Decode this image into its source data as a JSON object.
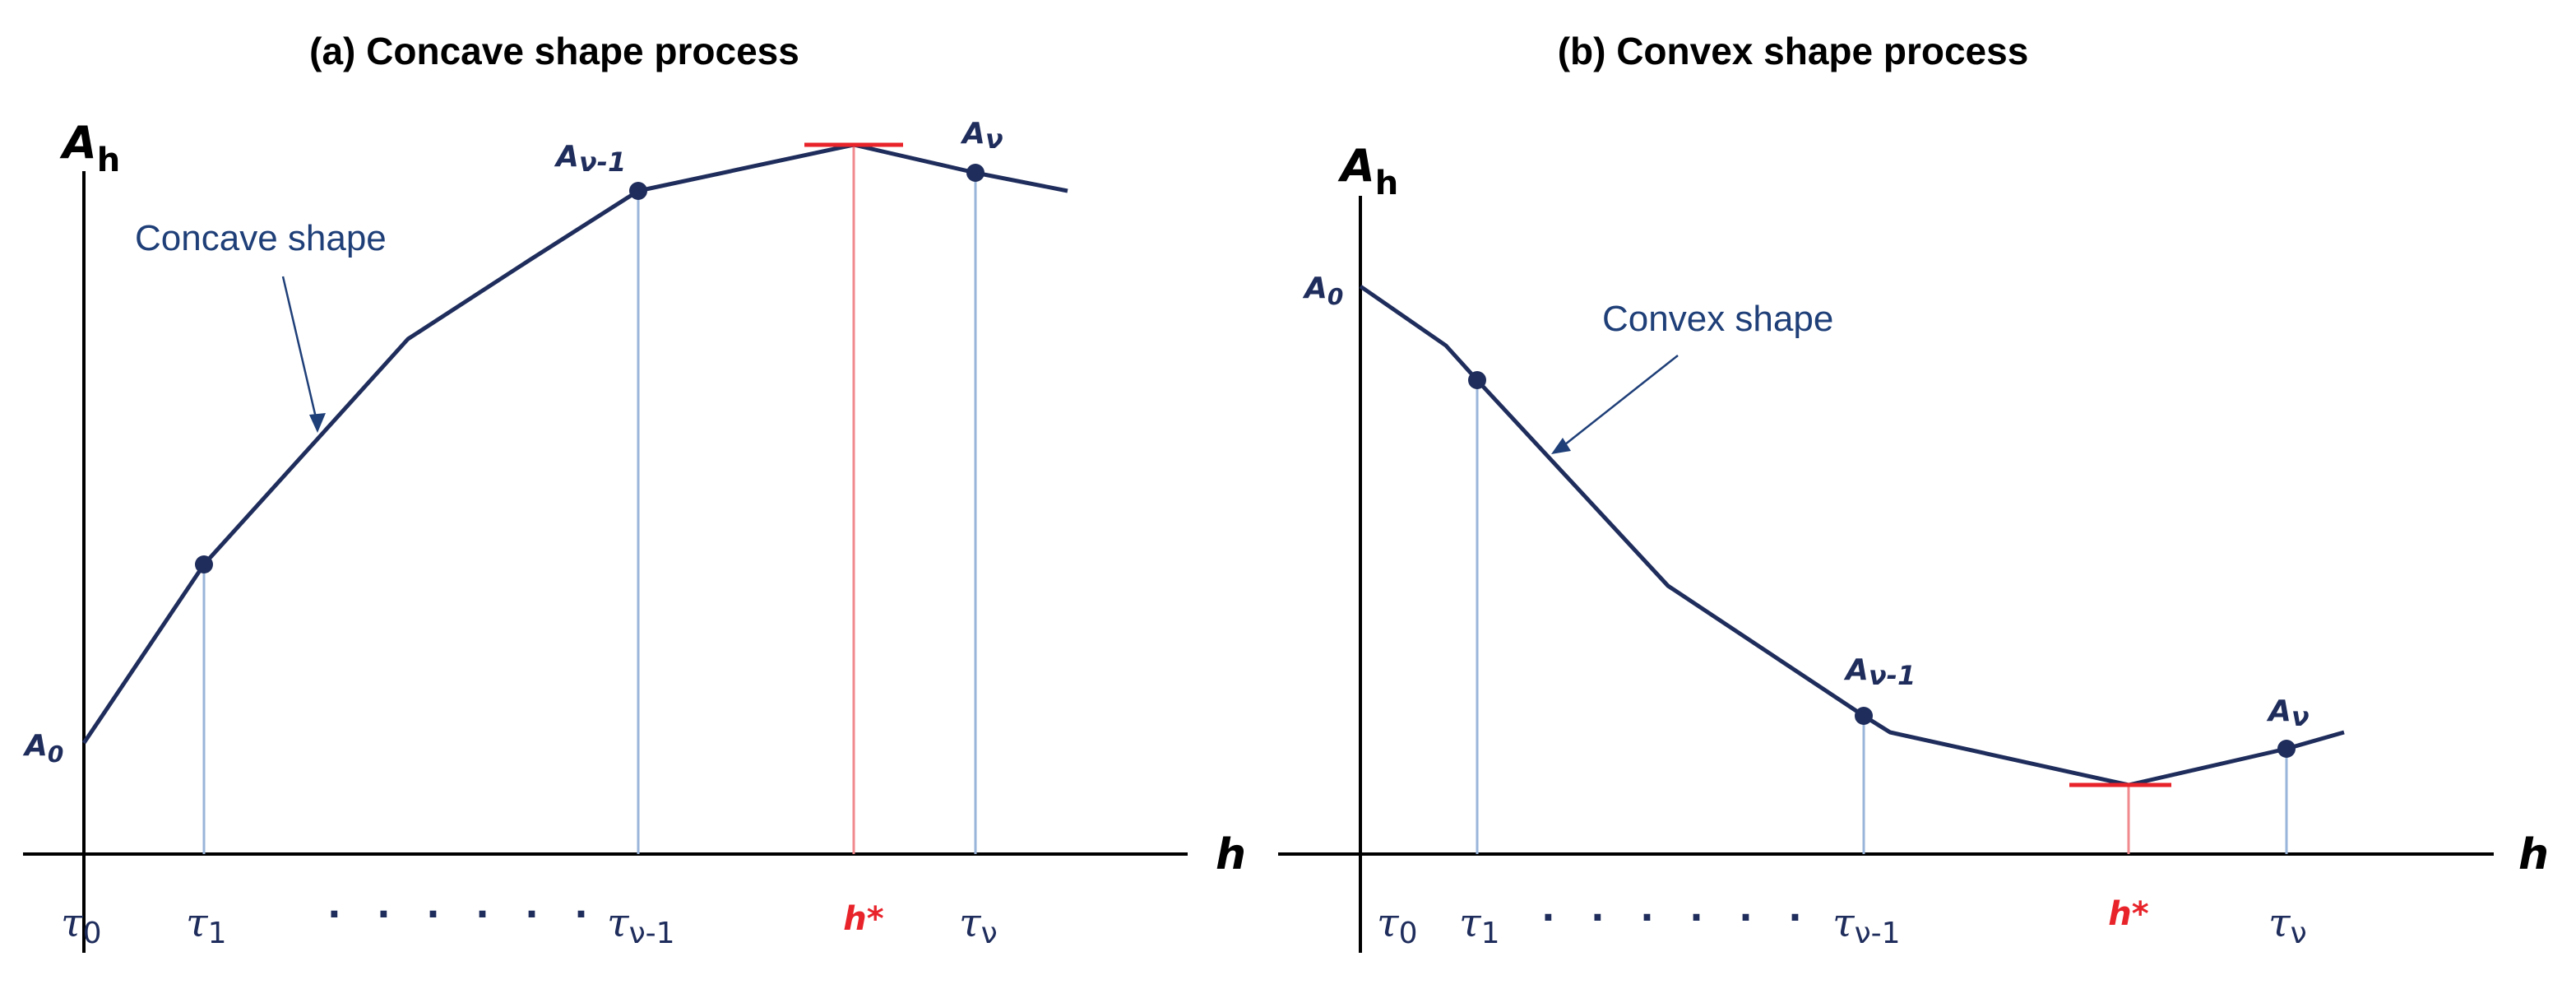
{
  "panels": [
    {
      "title": "(a) Concave shape process",
      "y_axis_label": "A",
      "y_axis_sub": "h",
      "x_axis_label": "h",
      "annotation": "Concave shape",
      "point_labels": {
        "a0": {
          "base": "A",
          "sub": "0"
        },
        "anm1": {
          "base": "A",
          "sub": "ν-1"
        },
        "an": {
          "base": "A",
          "sub": "ν"
        }
      },
      "ticks": {
        "tau0": {
          "base": "τ",
          "sub": "0"
        },
        "tau1": {
          "base": "τ",
          "sub": "1"
        },
        "taunm1": {
          "base": "τ",
          "sub": "ν-1"
        },
        "hstar": "h*",
        "taun": {
          "base": "τ",
          "sub": "ν"
        }
      },
      "ellipsis": "· · · · · ·"
    },
    {
      "title": "(b) Convex shape process",
      "y_axis_label": "A",
      "y_axis_sub": "h",
      "x_axis_label": "h",
      "annotation": "Convex shape",
      "point_labels": {
        "a0": {
          "base": "A",
          "sub": "0"
        },
        "anm1": {
          "base": "A",
          "sub": "ν-1"
        },
        "an": {
          "base": "A",
          "sub": "ν"
        }
      },
      "ticks": {
        "tau0": {
          "base": "τ",
          "sub": "0"
        },
        "tau1": {
          "base": "τ",
          "sub": "1"
        },
        "taunm1": {
          "base": "τ",
          "sub": "ν-1"
        },
        "hstar": "h*",
        "taun": {
          "base": "τ",
          "sub": "ν"
        }
      },
      "ellipsis": "· · · · · ·"
    }
  ],
  "colors": {
    "curve": "#1f2d5c",
    "drop_line": "#9ab5da",
    "optimum": "#e8232a",
    "optimum_drop": "#f08a8e",
    "axis": "#000000"
  }
}
